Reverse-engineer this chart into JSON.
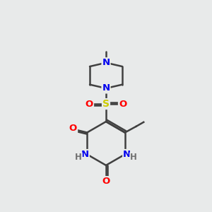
{
  "bg_color": "#e8eaea",
  "atom_colors": {
    "N": "#0000ee",
    "O": "#ff0000",
    "S": "#cccc00",
    "C": "#404040",
    "H": "#707070"
  },
  "bond_color": "#404040",
  "bond_width": 1.8,
  "figsize": [
    3.0,
    3.0
  ],
  "dpi": 100,
  "xlim": [
    0,
    10
  ],
  "ylim": [
    0,
    10
  ]
}
